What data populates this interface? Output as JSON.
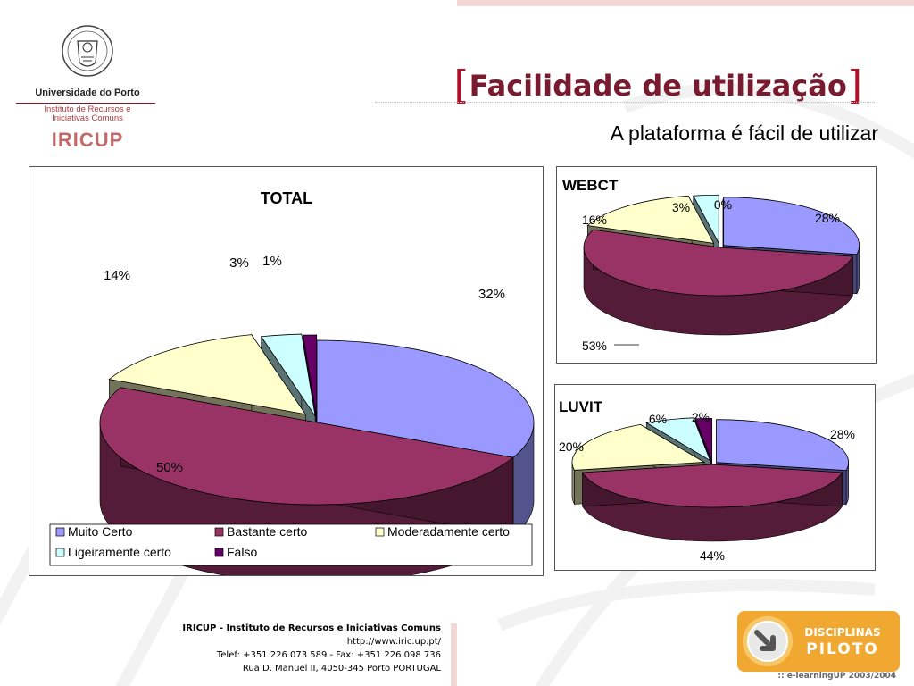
{
  "header": {
    "university": "Universidade do Porto",
    "institute_line1": "Instituto de Recursos e",
    "institute_line2": "Iniciativas Comuns",
    "acronym": "IRICUP",
    "title": "Facilidade de utilização",
    "subtitle": "A plataforma é fácil de utilizar"
  },
  "colors": {
    "muito_certo": "#9999ff",
    "bastante_certo": "#993366",
    "moderadamente_certo": "#ffffcc",
    "ligeiramente_certo": "#ccffff",
    "falso": "#660066"
  },
  "chart_data": [
    {
      "type": "pie",
      "title": "TOTAL",
      "categories": [
        "Muito Certo",
        "Bastante certo",
        "Moderadamente certo",
        "Ligeiramente certo",
        "Falso"
      ],
      "values": [
        32,
        50,
        14,
        3,
        1
      ],
      "labels": [
        "32%",
        "50%",
        "14%",
        "3%",
        "1%"
      ],
      "legend_position": "bottom"
    },
    {
      "type": "pie",
      "title": "WEBCT",
      "categories": [
        "Muito Certo",
        "Bastante certo",
        "Moderadamente certo",
        "Ligeiramente certo",
        "Falso"
      ],
      "values": [
        28,
        53,
        16,
        3,
        0
      ],
      "labels": [
        "28%",
        "53%",
        "16%",
        "3%",
        "0%"
      ]
    },
    {
      "type": "pie",
      "title": "LUVIT",
      "categories": [
        "Muito Certo",
        "Bastante certo",
        "Moderadamente certo",
        "Ligeiramente certo",
        "Falso"
      ],
      "values": [
        28,
        44,
        20,
        6,
        2
      ],
      "labels": [
        "28%",
        "44%",
        "20%",
        "6%",
        "2%"
      ]
    }
  ],
  "footer": {
    "line1": "IRICUP - Instituto de Recursos e Iniciativas Comuns",
    "line2": "http://www.iric.up.pt/",
    "line3": "Telef: +351 226 073 589 - Fax: +351 226 098 736",
    "line4": "Rua D. Manuel II, 4050-345 Porto PORTUGAL"
  },
  "badge": {
    "line1": "DISCIPLINAS",
    "line2": "PILOTO",
    "caption": ":: e-learningUP 2003/2004"
  }
}
